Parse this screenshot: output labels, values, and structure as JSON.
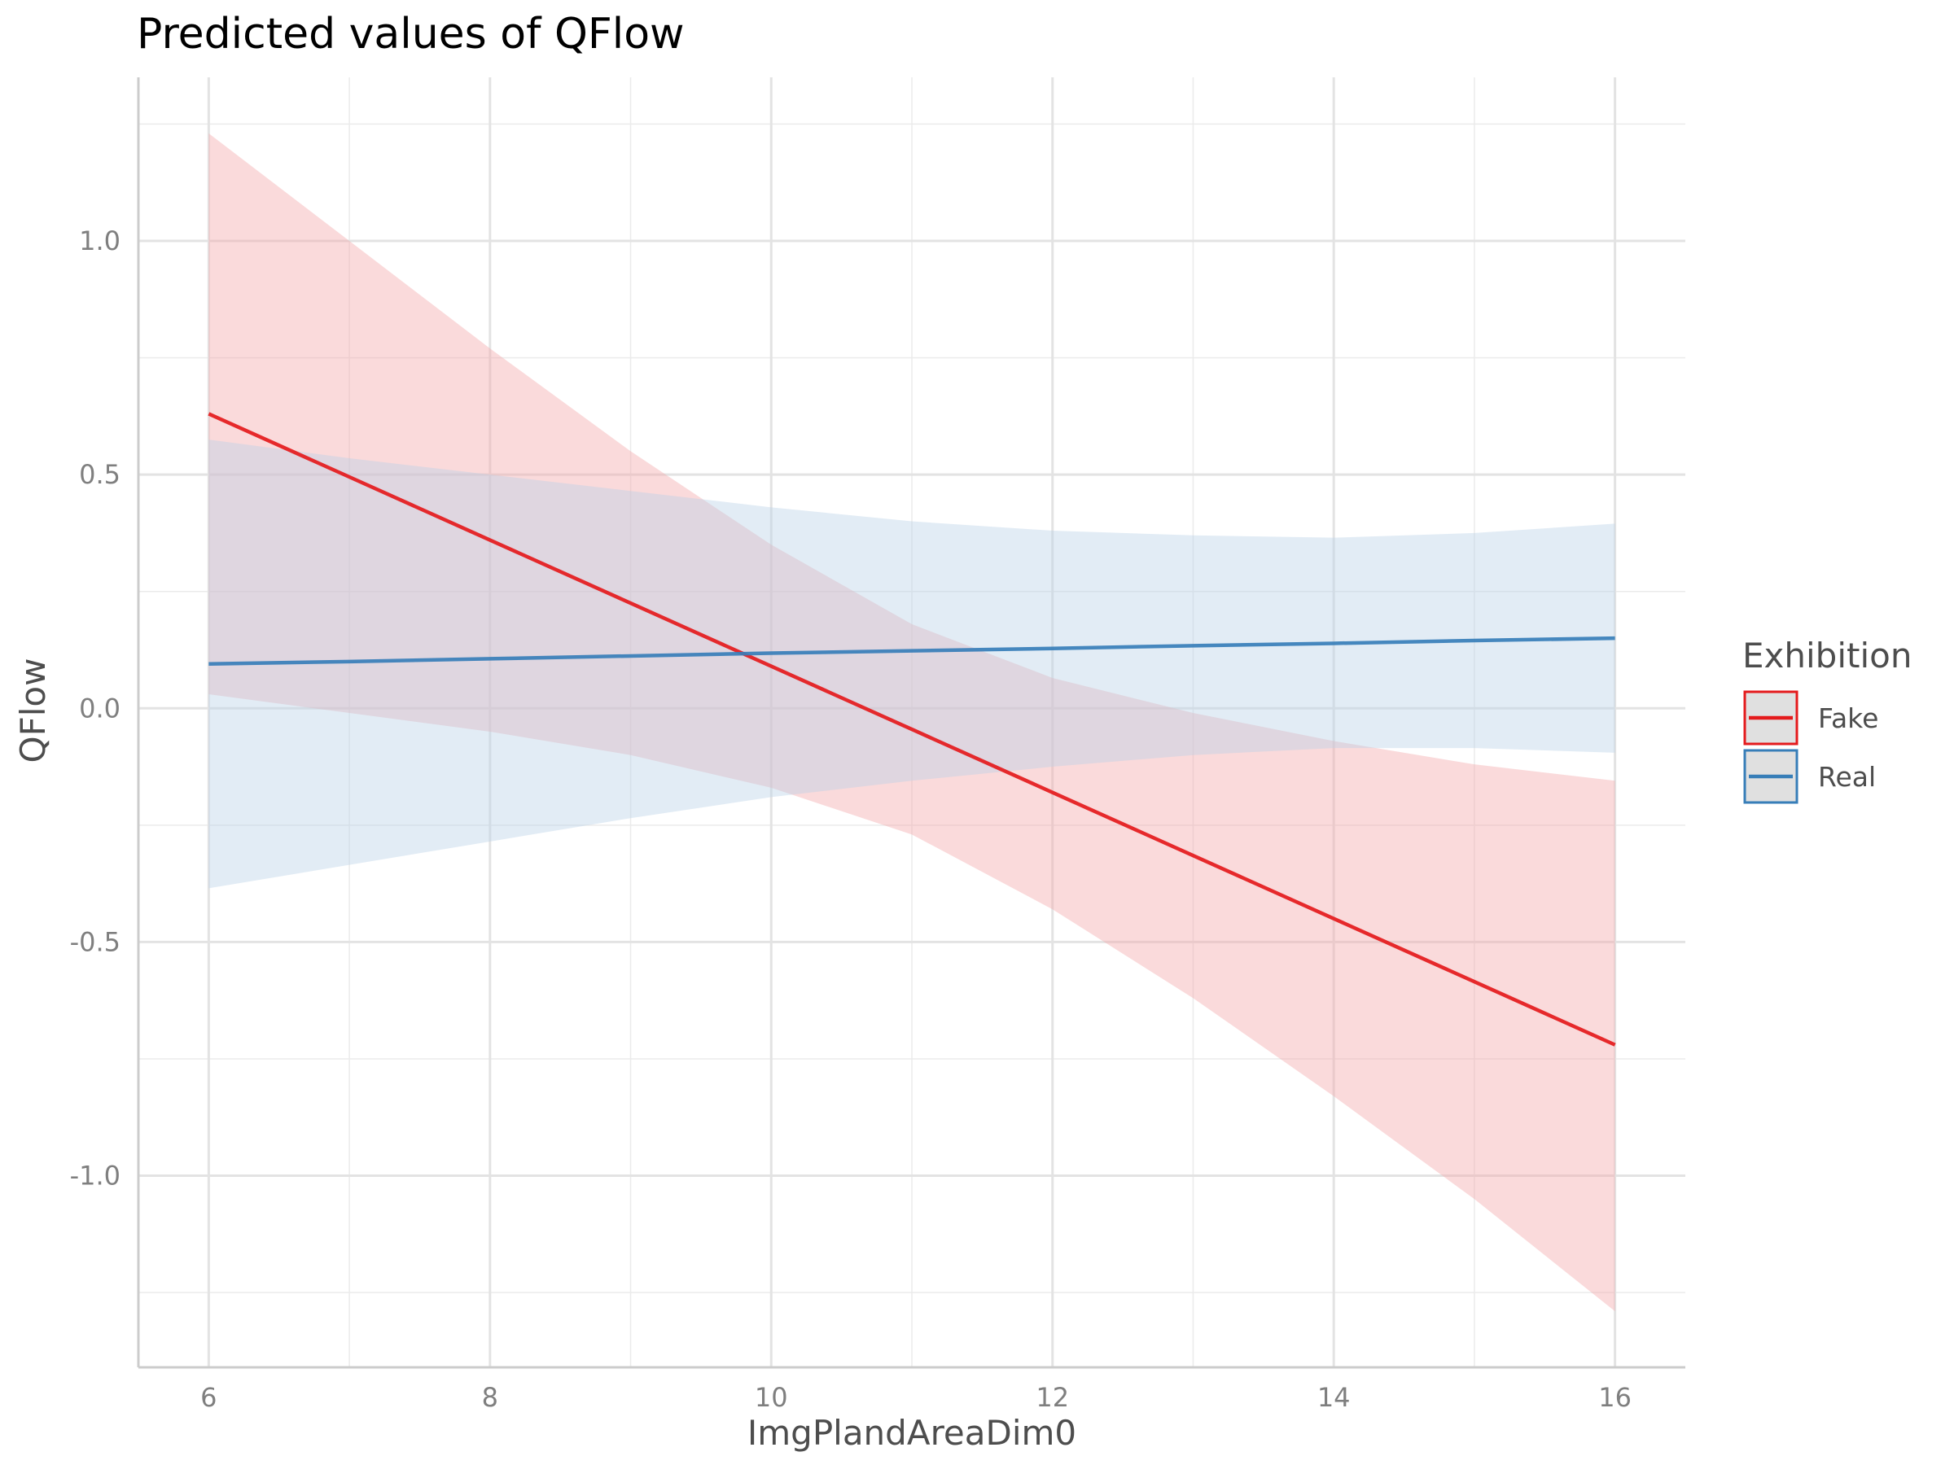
{
  "chart_data": {
    "type": "line",
    "title": "Predicted values of QFlow",
    "xlabel": "ImgPlandAreaDim0",
    "ylabel": "QFlow",
    "xlim": [
      5.5,
      16.5
    ],
    "ylim": [
      -1.41,
      1.35
    ],
    "x_ticks": [
      6,
      8,
      10,
      12,
      14,
      16
    ],
    "x_tick_labels": [
      "6",
      "8",
      "10",
      "12",
      "14",
      "16"
    ],
    "y_ticks": [
      -1.0,
      -0.5,
      0.0,
      0.5,
      1.0
    ],
    "y_tick_labels": [
      "-1.0",
      "-0.5",
      "0.0",
      "0.5",
      "1.0"
    ],
    "grid": true,
    "legend": {
      "title": "Exhibition",
      "position": "right"
    },
    "x": [
      6,
      7,
      8,
      9,
      10,
      11,
      12,
      13,
      14,
      15,
      16
    ],
    "series": [
      {
        "name": "Fake",
        "color": "#e41a1c",
        "fill": "#f4a6a9",
        "values": [
          0.63,
          0.495,
          0.36,
          0.225,
          0.09,
          -0.045,
          -0.18,
          -0.315,
          -0.45,
          -0.585,
          -0.72
        ],
        "lower": [
          0.03,
          -0.01,
          -0.05,
          -0.1,
          -0.17,
          -0.27,
          -0.43,
          -0.62,
          -0.83,
          -1.05,
          -1.29
        ],
        "upper": [
          1.23,
          1.0,
          0.77,
          0.55,
          0.35,
          0.18,
          0.065,
          -0.01,
          -0.07,
          -0.12,
          -0.155
        ]
      },
      {
        "name": "Real",
        "color": "#377eb8",
        "fill": "#b9d1e8",
        "values": [
          0.095,
          0.1,
          0.106,
          0.112,
          0.118,
          0.123,
          0.128,
          0.134,
          0.139,
          0.145,
          0.15
        ],
        "lower": [
          -0.385,
          -0.335,
          -0.285,
          -0.235,
          -0.19,
          -0.155,
          -0.125,
          -0.1,
          -0.085,
          -0.085,
          -0.095
        ],
        "upper": [
          0.575,
          0.535,
          0.5,
          0.465,
          0.43,
          0.4,
          0.38,
          0.37,
          0.365,
          0.375,
          0.395
        ]
      }
    ]
  }
}
